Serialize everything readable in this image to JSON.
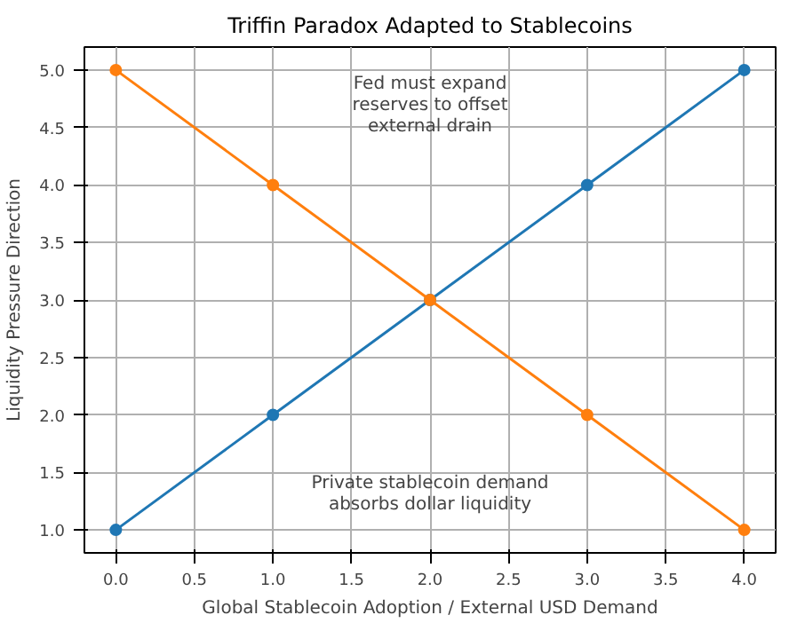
{
  "chart_data": {
    "type": "line",
    "title": "Triffin Paradox Adapted to Stablecoins",
    "xlabel": "Global Stablecoin Adoption / External USD Demand",
    "ylabel": "Liquidity Pressure Direction",
    "x": [
      0,
      1,
      2,
      3,
      4
    ],
    "series": [
      {
        "color": "#1f77b4",
        "values": [
          1,
          2,
          3,
          4,
          5
        ]
      },
      {
        "color": "#ff7f0e",
        "values": [
          5,
          4,
          3,
          2,
          1
        ]
      }
    ],
    "xlim": [
      -0.2,
      4.2
    ],
    "ylim": [
      0.8,
      5.2
    ],
    "xticks": [
      {
        "value": 0,
        "label": "0.0"
      },
      0.5,
      {
        "value": 1,
        "label": "1.0"
      },
      1.5,
      {
        "value": 2,
        "label": "2.0"
      },
      2.5,
      {
        "value": 3,
        "label": "3.0"
      },
      3.5,
      {
        "value": 4,
        "label": "4.0"
      }
    ],
    "yticks": [
      {
        "value": 1,
        "label": "1.0"
      },
      1.5,
      {
        "value": 2,
        "label": "2.0"
      },
      2.5,
      {
        "value": 3,
        "label": "3.0"
      },
      3.5,
      {
        "value": 4,
        "label": "4.0"
      },
      4.5,
      {
        "value": 5,
        "label": "5.0"
      }
    ],
    "annotations": [
      "Fed must expand\nreserves to offset\nexternal drain",
      "Private stablecoin demand\nabsorbs dollar liquidity"
    ],
    "grid": true,
    "marker": "circle",
    "line_style": "solid"
  }
}
